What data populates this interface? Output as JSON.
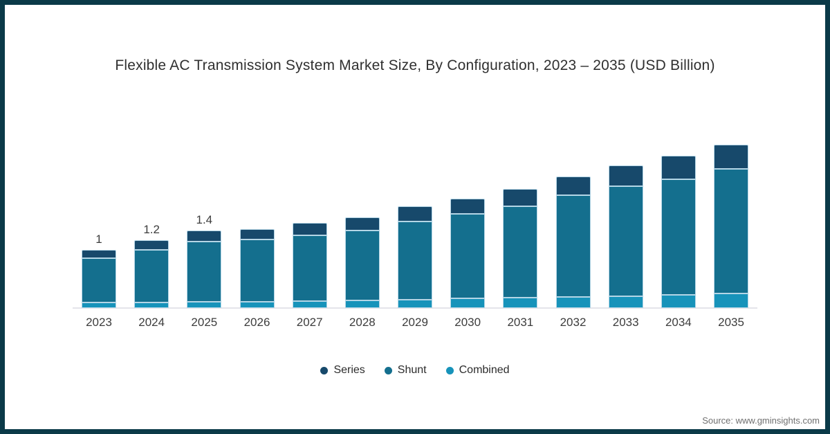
{
  "chart_data": {
    "type": "bar",
    "stacked": true,
    "title": "Flexible AC Transmission System Market Size, By Configuration, 2023 – 2035 (USD Billion)",
    "categories": [
      "2023",
      "2024",
      "2025",
      "2026",
      "2027",
      "2028",
      "2029",
      "2030",
      "2031",
      "2032",
      "2033",
      "2034",
      "2035"
    ],
    "series": [
      {
        "name": "Combined",
        "color": "#1793ba",
        "values": [
          0.1,
          0.1,
          0.11,
          0.11,
          0.12,
          0.13,
          0.14,
          0.17,
          0.18,
          0.19,
          0.2,
          0.23,
          0.25
        ]
      },
      {
        "name": "Shunt",
        "color": "#146f8e",
        "values": [
          0.76,
          0.9,
          1.03,
          1.07,
          1.13,
          1.2,
          1.35,
          1.45,
          1.57,
          1.75,
          1.89,
          1.99,
          2.14
        ]
      },
      {
        "name": "Series",
        "color": "#17496b",
        "values": [
          0.14,
          0.17,
          0.19,
          0.18,
          0.21,
          0.23,
          0.26,
          0.26,
          0.3,
          0.32,
          0.36,
          0.4,
          0.42
        ]
      }
    ],
    "bar_labels": [
      "1",
      "1.2",
      "1.4",
      "",
      "",
      "",
      "",
      "",
      "",
      "",
      "",
      "",
      ""
    ],
    "totals_estimated": [
      1.0,
      1.2,
      1.4,
      1.36,
      1.46,
      1.56,
      1.75,
      1.88,
      2.05,
      2.26,
      2.45,
      2.62,
      2.81
    ],
    "ylim": [
      0,
      3
    ],
    "grid": false,
    "legend": {
      "position": "bottom",
      "entries": [
        "Series",
        "Shunt",
        "Combined"
      ]
    },
    "colors": {
      "series_segment": "#17496b",
      "shunt_segment": "#146f8e",
      "combined_segment": "#1793ba",
      "segment_border": "#b5d6e6",
      "axis_line": "#e4e4ea",
      "frame_border": "#0b3a48"
    }
  },
  "source": "Source: www.gminsights.com"
}
